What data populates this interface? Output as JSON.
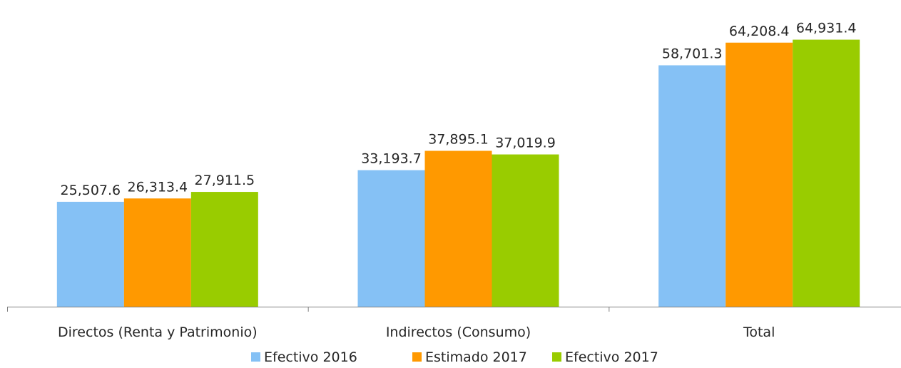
{
  "chart_data": {
    "type": "bar",
    "categories": [
      "Directos (Renta y Patrimonio)",
      "Indirectos (Consumo)",
      "Total"
    ],
    "series": [
      {
        "name": "Efectivo 2016",
        "color": "#85C1F5",
        "values": [
          25507.6,
          33193.7,
          58701.3
        ],
        "labels": [
          "25,507.6",
          "33,193.7",
          "58,701.3"
        ]
      },
      {
        "name": "Estimado 2017",
        "color": "#FF9900",
        "values": [
          26313.4,
          37895.1,
          64208.4
        ],
        "labels": [
          "26,313.4",
          "37,895.1",
          "64,208.4"
        ]
      },
      {
        "name": "Efectivo 2017",
        "color": "#99CC00",
        "values": [
          27911.5,
          37019.9,
          64931.4
        ],
        "labels": [
          "27,911.5",
          "37,019.9",
          "64,931.4"
        ]
      }
    ],
    "title": "",
    "xlabel": "",
    "ylabel": "",
    "ylim": [
      0,
      70000
    ],
    "grid": false,
    "legend": "bottom"
  }
}
